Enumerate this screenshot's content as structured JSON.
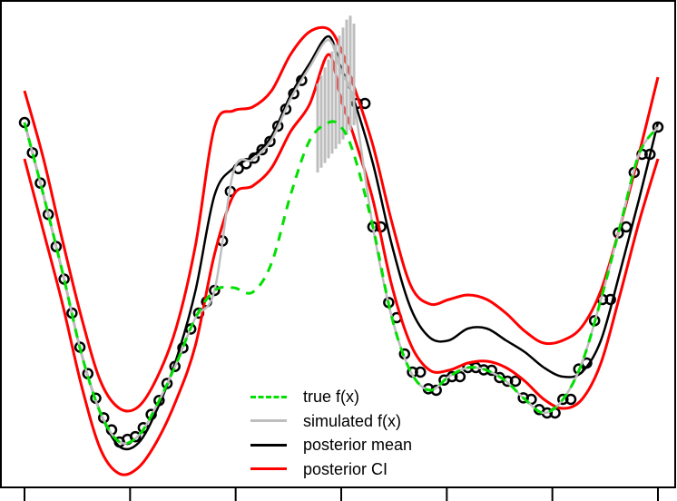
{
  "chart_data": {
    "type": "line",
    "title": "",
    "xlabel": "",
    "ylabel": "",
    "grid": false,
    "axes": {
      "box": true,
      "x_ticks_count": 7,
      "tick_labels_visible": false,
      "y_axis_visible": false
    },
    "legend": {
      "position": "bottom-center",
      "entries": [
        {
          "label": "true f(x)",
          "color": "#00e000",
          "style": "dashed"
        },
        {
          "label": "simulated f(x)",
          "color": "#bebebe",
          "style": "solid"
        },
        {
          "label": "posterior mean",
          "color": "#000000",
          "style": "solid"
        },
        {
          "label": "posterior CI",
          "color": "#ff0000",
          "style": "solid"
        }
      ]
    },
    "x": [
      0.0,
      0.03,
      0.06,
      0.09,
      0.12,
      0.15,
      0.18,
      0.21,
      0.24,
      0.27,
      0.3,
      0.33,
      0.36,
      0.39,
      0.42,
      0.45,
      0.48,
      0.5,
      0.52,
      0.55,
      0.58,
      0.61,
      0.64,
      0.67,
      0.7,
      0.73,
      0.76,
      0.79,
      0.82,
      0.85,
      0.88,
      0.91,
      0.94,
      0.97,
      1.0
    ],
    "series": [
      {
        "name": "true f(x)",
        "values": [
          135,
          215,
          300,
          390,
          455,
          487,
          480,
          445,
          400,
          350,
          320,
          317,
          322,
          290,
          215,
          155,
          135,
          140,
          170,
          250,
          350,
          410,
          430,
          415,
          405,
          408,
          420,
          440,
          455,
          440,
          400,
          330,
          250,
          170,
          140
        ]
      },
      {
        "name": "posterior mean",
        "values": [
          135,
          215,
          300,
          390,
          455,
          492,
          488,
          450,
          395,
          320,
          215,
          185,
          172,
          150,
          105,
          70,
          40,
          75,
          110,
          180,
          270,
          340,
          372,
          375,
          362,
          362,
          375,
          388,
          405,
          415,
          410,
          375,
          300,
          220,
          135
        ]
      },
      {
        "name": "posterior CI upper",
        "values": [
          100,
          175,
          265,
          350,
          420,
          450,
          448,
          415,
          360,
          270,
          140,
          122,
          118,
          100,
          60,
          35,
          32,
          55,
          95,
          160,
          245,
          315,
          335,
          330,
          325,
          330,
          345,
          365,
          378,
          375,
          360,
          320,
          250,
          170,
          85
        ]
      },
      {
        "name": "posterior CI lower",
        "values": [
          175,
          255,
          335,
          425,
          495,
          522,
          515,
          485,
          440,
          380,
          280,
          215,
          205,
          185,
          145,
          115,
          60,
          110,
          150,
          220,
          315,
          380,
          408,
          408,
          400,
          398,
          405,
          420,
          440,
          450,
          440,
          400,
          325,
          245,
          175
        ]
      }
    ],
    "ylim_pixels": [
      0,
      537
    ],
    "notes": "Values are pixel-space y positions (top=0). Simulated f(x) follows true f(x) where observed, jumping to the posterior mean region between x≈0.30 and x≈0.53 with many vertical spikes near the peak."
  }
}
